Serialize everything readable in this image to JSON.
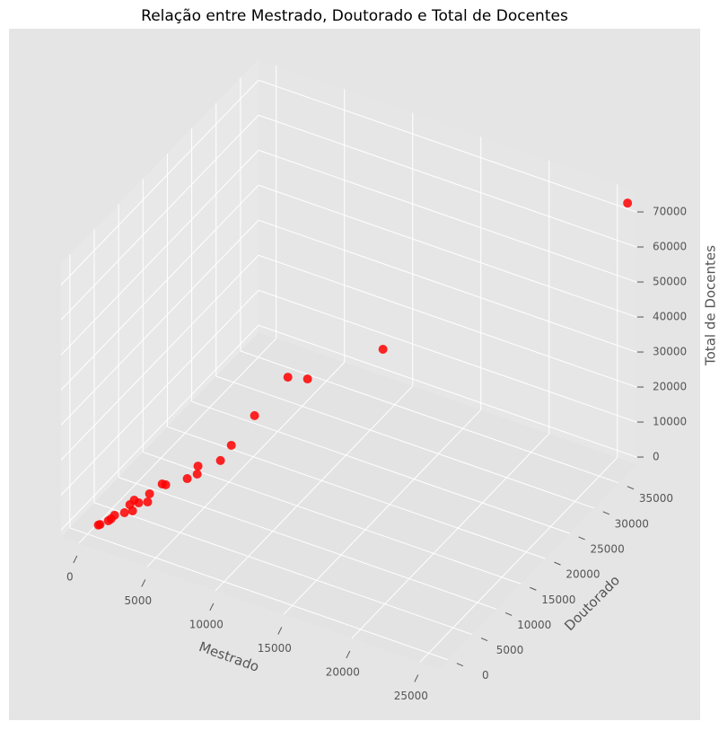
{
  "chart_data": {
    "type": "scatter3d",
    "title": "Relação entre Mestrado, Doutorado e Total de Docentes",
    "xlabel": "Mestrado",
    "ylabel": "Doutorado",
    "zlabel": "Total de Docentes",
    "color": "#ff0000",
    "x": [
      26000,
      14260,
      10620,
      9670,
      8060,
      6940,
      6415,
      5330,
      5290,
      4810,
      3770,
      3600,
      2990,
      2900,
      2470,
      2250,
      2170,
      2040,
      1780,
      1300,
      1130,
      1000,
      600,
      520
    ],
    "y": [
      38000,
      20680,
      15400,
      14020,
      11690,
      10060,
      9300,
      7730,
      7670,
      6975,
      5470,
      5220,
      4340,
      4200,
      3580,
      3260,
      3150,
      2960,
      2580,
      1890,
      1640,
      1450,
      870,
      750
    ],
    "z": [
      73000,
      40300,
      34500,
      35700,
      25900,
      18250,
      14300,
      13500,
      11250,
      10300,
      9300,
      9670,
      7300,
      5050,
      5100,
      6050,
      3030,
      4900,
      2800,
      2400,
      1500,
      1060,
      300,
      200
    ],
    "xlim": [
      -1300,
      26400
    ],
    "ylim": [
      -1800,
      38700
    ],
    "zlim": [
      -2000,
      76000
    ],
    "xticks": [
      0,
      5000,
      10000,
      15000,
      20000,
      25000
    ],
    "yticks": [
      0,
      5000,
      10000,
      15000,
      20000,
      25000,
      30000,
      35000
    ],
    "zticks": [
      0,
      10000,
      20000,
      30000,
      40000,
      50000,
      60000,
      70000
    ],
    "grid": true
  }
}
